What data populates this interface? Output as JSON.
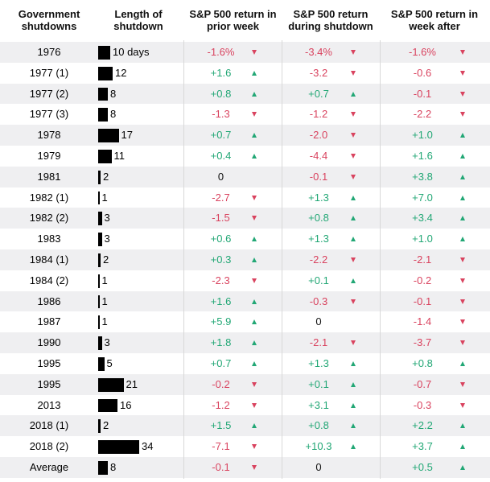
{
  "table": {
    "header": [
      "Government shutdowns",
      "Length of shutdown",
      "S&P 500 return in prior week",
      "S&P 500 return during shutdown",
      "S&P 500 return in week after"
    ],
    "rows": [
      [
        "1976",
        {
          "value": 10,
          "label": "10 days"
        },
        "-1.6%",
        "-3.4%",
        "-1.6%"
      ],
      [
        "1977 (1)",
        12,
        "+1.6",
        "-3.2",
        "-0.6"
      ],
      [
        "1977 (2)",
        8,
        "+0.8",
        "+0.7",
        "-0.1"
      ],
      [
        "1977 (3)",
        8,
        "-1.3",
        "-1.2",
        "-2.2"
      ],
      [
        "1978",
        17,
        "+0.7",
        "-2.0",
        "+1.0"
      ],
      [
        "1979",
        11,
        "+0.4",
        "-4.4",
        "+1.6"
      ],
      [
        "1981",
        2,
        "0",
        "-0.1",
        "+3.8"
      ],
      [
        "1982 (1)",
        1,
        "-2.7",
        "+1.3",
        "+7.0"
      ],
      [
        "1982 (2)",
        3,
        "-1.5",
        "+0.8",
        "+3.4"
      ],
      [
        "1983",
        3,
        "+0.6",
        "+1.3",
        "+1.0"
      ],
      [
        "1984 (1)",
        2,
        "+0.3",
        "-2.2",
        "-2.1"
      ],
      [
        "1984 (2)",
        1,
        "-2.3",
        "+0.1",
        "-0.2"
      ],
      [
        "1986",
        1,
        "+1.6",
        "-0.3",
        "-0.1"
      ],
      [
        "1987",
        1,
        "+5.9",
        "0",
        "-1.4"
      ],
      [
        "1990",
        3,
        "+1.8",
        "-2.1",
        "-3.7"
      ],
      [
        "1995",
        5,
        "+0.7",
        "+1.3",
        "+0.8"
      ],
      [
        "1995",
        21,
        "-0.2",
        "+0.1",
        "-0.7"
      ],
      [
        "2013",
        16,
        "-1.2",
        "+3.1",
        "-0.3"
      ],
      [
        "2018 (1)",
        2,
        "+1.5",
        "+0.8",
        "+2.2"
      ],
      [
        "2018 (2)",
        34,
        "-7.1",
        "+10.3",
        "+3.7"
      ],
      [
        "Average",
        8,
        "-0.1",
        "0",
        "+0.5"
      ]
    ]
  }
}
